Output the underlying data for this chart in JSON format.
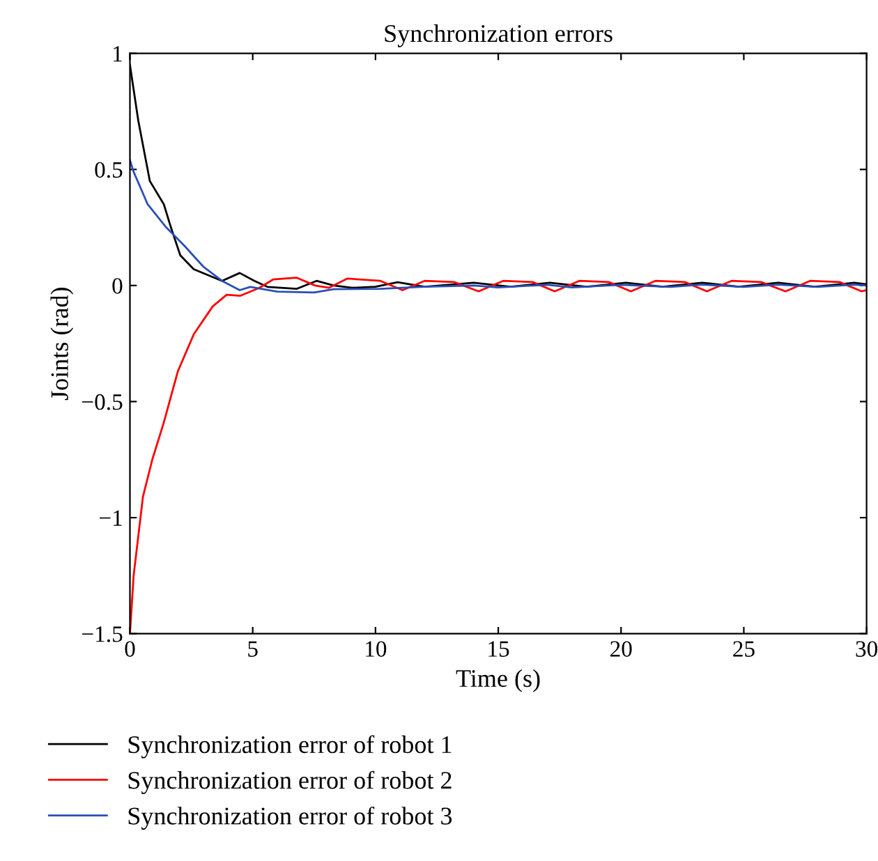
{
  "chart_data": {
    "type": "line",
    "title": "Synchronization errors",
    "xlabel": "Time (s)",
    "ylabel": "Joints (rad)",
    "xlim": [
      0,
      30
    ],
    "ylim": [
      -1.5,
      1
    ],
    "xticks": [
      0,
      5,
      10,
      15,
      20,
      25,
      30
    ],
    "yticks": [
      {
        "value": -1.5,
        "label": "−1.5"
      },
      {
        "value": -1,
        "label": "−1"
      },
      {
        "value": -0.5,
        "label": "−0.5"
      },
      0,
      0.5,
      1
    ],
    "grid": false,
    "legend": "bottom",
    "line_style": "solid",
    "marker": "none",
    "series": [
      {
        "name": "Synchronization error of robot 1",
        "color": "#000000",
        "x": [
          0,
          0.34,
          0.81,
          1.38,
          1.67,
          2.05,
          2.6,
          3.75,
          4.47,
          5.07,
          5.6,
          6.8,
          7.6,
          8.3,
          9.05,
          10.0,
          10.9,
          12.0,
          14.0,
          15.5,
          17.1,
          18.6,
          20.2,
          21.7,
          23.3,
          24.8,
          26.4,
          27.9,
          29.5,
          30
        ],
        "values": [
          0.95,
          0.71,
          0.45,
          0.35,
          0.25,
          0.13,
          0.07,
          0.02,
          0.054,
          0.02,
          -0.006,
          -0.014,
          0.02,
          0,
          -0.01,
          -0.005,
          0.014,
          -0.005,
          0.012,
          -0.005,
          0.012,
          -0.005,
          0.012,
          -0.005,
          0.012,
          -0.005,
          0.012,
          -0.005,
          0.012,
          0.005
        ]
      },
      {
        "name": "Synchronization error of robot 2",
        "color": "#ff0000",
        "x": [
          0,
          0.15,
          0.53,
          0.91,
          1.38,
          1.95,
          2.6,
          3.37,
          3.94,
          4.5,
          5.27,
          5.83,
          6.78,
          7.54,
          8.1,
          8.86,
          10.2,
          11.1,
          12.0,
          13.2,
          14.2,
          15.2,
          16.4,
          17.3,
          18.3,
          19.5,
          20.4,
          21.4,
          22.6,
          23.5,
          24.5,
          25.7,
          26.7,
          27.7,
          28.9,
          29.8,
          30
        ],
        "values": [
          -1.5,
          -1.25,
          -0.91,
          -0.75,
          -0.59,
          -0.37,
          -0.21,
          -0.09,
          -0.04,
          -0.044,
          -0.01,
          0.026,
          0.034,
          0,
          -0.01,
          0.03,
          0.02,
          -0.02,
          0.02,
          0.015,
          -0.025,
          0.02,
          0.015,
          -0.025,
          0.02,
          0.015,
          -0.025,
          0.02,
          0.015,
          -0.025,
          0.02,
          0.015,
          -0.025,
          0.02,
          0.015,
          -0.025,
          -0.02
        ]
      },
      {
        "name": "Synchronization error of robot 3",
        "color": "#2b4eb5",
        "x": [
          0,
          0.15,
          0.72,
          1.48,
          2.23,
          3.0,
          3.75,
          4.47,
          4.9,
          6.0,
          7.5,
          8.3,
          10.2,
          12.0,
          14.0,
          15.0,
          17.0,
          18.0,
          20.0,
          22.0,
          23.3,
          25.0,
          26.4,
          28.0,
          29.5,
          30
        ],
        "values": [
          0.54,
          0.49,
          0.35,
          0.25,
          0.17,
          0.08,
          0.02,
          -0.02,
          -0.006,
          -0.026,
          -0.03,
          -0.016,
          -0.014,
          -0.005,
          0.0,
          -0.008,
          0.003,
          -0.008,
          0.003,
          -0.006,
          0.004,
          -0.006,
          0.004,
          -0.006,
          0.004,
          0.0
        ]
      }
    ]
  }
}
